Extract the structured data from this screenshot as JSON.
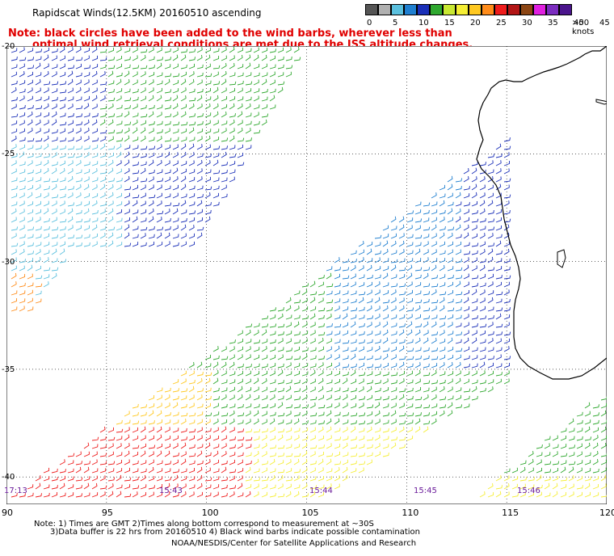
{
  "header": {
    "title": "Rapidscat Winds(12.5KM) 20160510 ascending",
    "note_line1": "Note: black circles have been added to the wind barbs, wherever less than",
    "note_line2": "optimal wind retrieval conditions are met due to the ISS altitude changes."
  },
  "legend": {
    "unit_label": ">50 knots",
    "labels": [
      "0",
      "5",
      "10",
      "15",
      "20",
      "25",
      "30",
      "35",
      "40",
      "45"
    ],
    "colors": [
      "#555555",
      "#b0b0b0",
      "#5bc0de",
      "#1f7fd0",
      "#1a2fb8",
      "#2fa82f",
      "#c8e832",
      "#f5ee34",
      "#ffc820",
      "#ff8c1a",
      "#ee1c1c",
      "#b21515",
      "#8b4513",
      "#e020e0",
      "#7b2cbf",
      "#4a148c"
    ]
  },
  "axes": {
    "lon_labels": [
      "90",
      "95",
      "100",
      "105",
      "110",
      "115",
      "120"
    ],
    "lat_labels": [
      "-20",
      "-25",
      "-30",
      "-35",
      "-40"
    ]
  },
  "pass_times": [
    "17:13",
    "15:43",
    "15:44",
    "15:45",
    "15:46"
  ],
  "footer": {
    "line1": "Note: 1) Times are GMT 2)Times along bottom correspond to measurement at ~30S",
    "line2": "3)Data buffer is 22 hrs from 20160510 4) Black wind barbs indicate possible contamination",
    "line3": "NOAA/NESDIS/Center for Satellite Applications and Research"
  }
}
